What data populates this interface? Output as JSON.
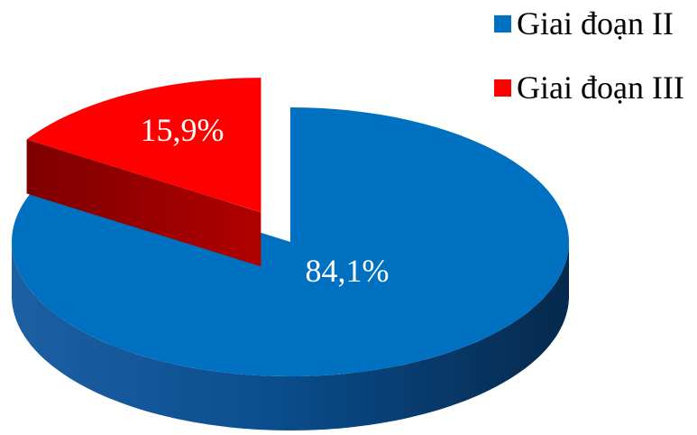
{
  "chart_data": {
    "type": "pie",
    "title": "",
    "categories": [
      "Giai đoạn II",
      "Giai đoạn III"
    ],
    "values": [
      84.1,
      15.9
    ],
    "value_labels": [
      "84,1%",
      "15,9%"
    ],
    "colors": [
      "#0070C0",
      "#FF0000"
    ],
    "exploded": [
      false,
      true
    ],
    "style": "3d",
    "legend_position": "top-right"
  }
}
